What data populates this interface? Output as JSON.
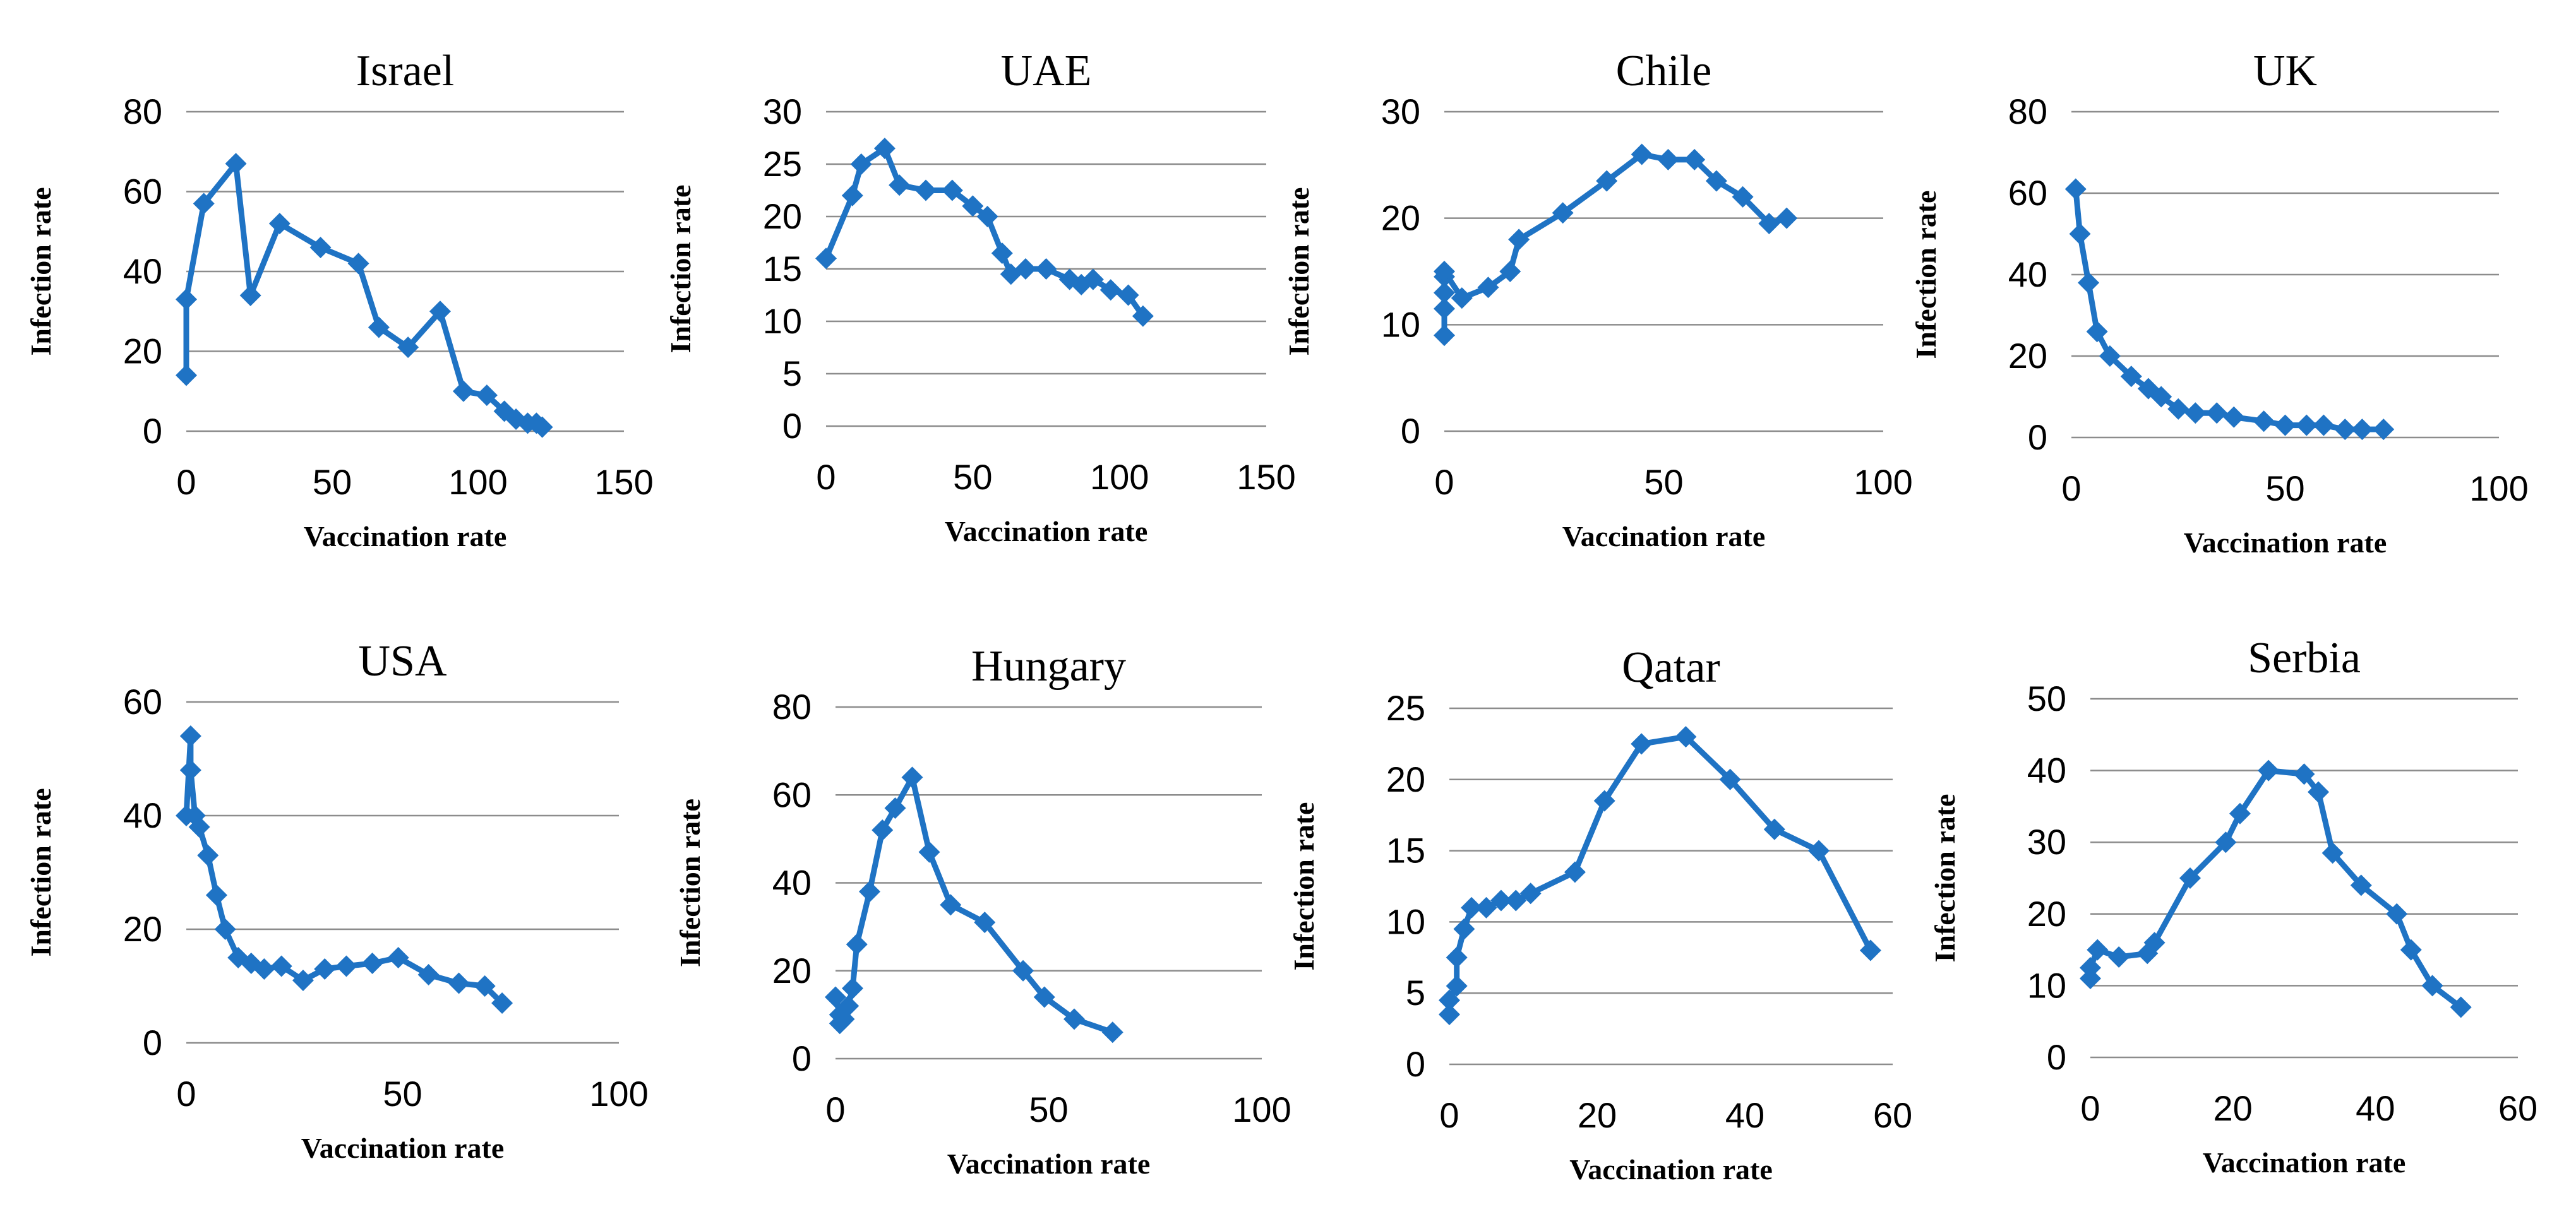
{
  "chart_data": [
    {
      "type": "line",
      "title": "Israel",
      "xlabel": "Vaccination rate",
      "ylabel": "Infection rate",
      "xlim": [
        0,
        150
      ],
      "xticks": [
        0,
        50,
        100,
        150
      ],
      "ylim": [
        0,
        80
      ],
      "yticks": [
        0,
        20,
        40,
        60,
        80
      ],
      "x": [
        0,
        0,
        6,
        17,
        22,
        32,
        46,
        59,
        66,
        76,
        87,
        95,
        103,
        109,
        113,
        117,
        120,
        122
      ],
      "y": [
        14,
        33,
        57,
        67,
        34,
        52,
        46,
        42,
        26,
        21,
        30,
        10,
        9,
        5,
        3,
        2,
        2,
        1
      ]
    },
    {
      "type": "line",
      "title": "UAE",
      "xlabel": "Vaccination rate",
      "ylabel": "Infection rate",
      "xlim": [
        0,
        150
      ],
      "xticks": [
        0,
        50,
        100,
        150
      ],
      "ylim": [
        0,
        30
      ],
      "yticks": [
        0,
        5,
        10,
        15,
        20,
        25,
        30
      ],
      "x": [
        0,
        9,
        12,
        20,
        25,
        34,
        43,
        50,
        55,
        60,
        63,
        68,
        75,
        83,
        87,
        91,
        97,
        103,
        108
      ],
      "y": [
        16,
        22,
        25,
        26.5,
        23,
        22.5,
        22.5,
        21,
        20,
        16.5,
        14.5,
        15,
        15,
        14,
        13.5,
        14,
        13,
        12.5,
        10.5
      ]
    },
    {
      "type": "line",
      "title": "Chile",
      "xlabel": "Vaccination rate",
      "ylabel": "Infection rate",
      "xlim": [
        0,
        100
      ],
      "xticks": [
        0,
        50,
        100
      ],
      "ylim": [
        0,
        30
      ],
      "yticks": [
        0,
        10,
        20,
        30
      ],
      "x": [
        0,
        0,
        0,
        0,
        0,
        4,
        10,
        15,
        17,
        27,
        37,
        45,
        51,
        57,
        62,
        68,
        74,
        78
      ],
      "y": [
        9,
        11.5,
        13,
        14.5,
        15,
        12.5,
        13.5,
        15,
        18,
        20.5,
        23.5,
        26,
        25.5,
        25.5,
        23.5,
        22,
        19.5,
        20
      ]
    },
    {
      "type": "line",
      "title": "UK",
      "xlabel": "Vaccination rate",
      "ylabel": "Infection rate",
      "xlim": [
        0,
        100
      ],
      "xticks": [
        0,
        50,
        100
      ],
      "ylim": [
        0,
        80
      ],
      "yticks": [
        0,
        20,
        40,
        60,
        80
      ],
      "x": [
        1,
        2,
        4,
        6,
        9,
        14,
        18,
        21,
        25,
        29,
        34,
        38,
        45,
        50,
        55,
        59,
        64,
        68,
        73
      ],
      "y": [
        61,
        50,
        38,
        26,
        20,
        15,
        12,
        10,
        7,
        6,
        6,
        5,
        4,
        3,
        3,
        3,
        2,
        2,
        2
      ]
    },
    {
      "type": "line",
      "title": "USA",
      "xlabel": "Vaccination rate",
      "ylabel": "Infection rate",
      "xlim": [
        0,
        100
      ],
      "xticks": [
        0,
        50,
        100
      ],
      "ylim": [
        0,
        60
      ],
      "yticks": [
        0,
        20,
        40,
        60
      ],
      "x": [
        0,
        1,
        1,
        2,
        3,
        5,
        7,
        9,
        12,
        15,
        18,
        22,
        27,
        32,
        37,
        43,
        49,
        56,
        63,
        69,
        73
      ],
      "y": [
        40,
        54,
        48,
        40,
        38,
        33,
        26,
        20,
        15,
        14,
        13,
        13.5,
        11,
        13,
        13.5,
        14,
        15,
        12,
        10.5,
        10,
        7
      ]
    },
    {
      "type": "line",
      "title": "Hungary",
      "xlabel": "Vaccination rate",
      "ylabel": "Infection rate",
      "xlim": [
        0,
        100
      ],
      "xticks": [
        0,
        50,
        100
      ],
      "ylim": [
        0,
        80
      ],
      "yticks": [
        0,
        20,
        40,
        60,
        80
      ],
      "x": [
        0,
        1,
        1,
        2,
        3,
        4,
        5,
        8,
        11,
        14,
        18,
        22,
        27,
        35,
        44,
        49,
        56,
        65
      ],
      "y": [
        14,
        10,
        8,
        9,
        12,
        16,
        26,
        38,
        52,
        57,
        64,
        47,
        35,
        31,
        20,
        14,
        9,
        6
      ]
    },
    {
      "type": "line",
      "title": "Qatar",
      "xlabel": "Vaccination rate",
      "ylabel": "Infection rate",
      "xlim": [
        0,
        60
      ],
      "xticks": [
        0,
        20,
        40,
        60
      ],
      "ylim": [
        0,
        25
      ],
      "yticks": [
        0,
        5,
        10,
        15,
        20,
        25
      ],
      "x": [
        0,
        0,
        1,
        1,
        2,
        3,
        5,
        7,
        9,
        11,
        17,
        21,
        26,
        32,
        38,
        44,
        50,
        57
      ],
      "y": [
        3.5,
        4.5,
        5.5,
        7.5,
        9.5,
        11,
        11,
        11.5,
        11.5,
        12,
        13.5,
        18.5,
        22.5,
        23,
        20,
        16.5,
        15,
        8
      ]
    },
    {
      "type": "line",
      "title": "Serbia",
      "xlabel": "Vaccination rate",
      "ylabel": "Infection rate",
      "xlim": [
        0,
        60
      ],
      "xticks": [
        0,
        20,
        40,
        60
      ],
      "ylim": [
        0,
        50
      ],
      "yticks": [
        0,
        10,
        20,
        30,
        40,
        50
      ],
      "x": [
        0,
        0,
        1,
        4,
        8,
        9,
        14,
        19,
        21,
        25,
        30,
        32,
        34,
        38,
        43,
        45,
        48,
        52
      ],
      "y": [
        11,
        12.5,
        15,
        14,
        14.5,
        16,
        25,
        30,
        34,
        40,
        39.5,
        37,
        28.5,
        24,
        20,
        15,
        10,
        7
      ]
    }
  ]
}
